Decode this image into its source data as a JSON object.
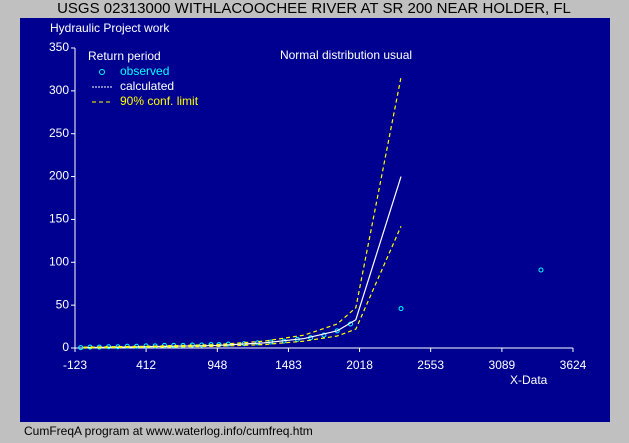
{
  "chart_data": {
    "type": "line",
    "title": "USGS 02313000 WITHLACOOCHEE RIVER AT SR 200 NEAR HOLDER, FL",
    "subtitle": "Hydraulic Project work",
    "annotation": "Normal distribution usual",
    "legend_title": "Return period",
    "x_label": "X-Data",
    "footer": "CumFreqA program at www.waterlog.info/cumfreq.htm",
    "xlim": [
      -123,
      3624
    ],
    "xticks": [
      -123,
      412,
      948,
      1483,
      2018,
      2553,
      3089,
      3624
    ],
    "ylim": [
      0,
      350
    ],
    "yticks": [
      0,
      50,
      100,
      150,
      200,
      250,
      300,
      350
    ],
    "series": [
      {
        "name": "observed",
        "color": "#00ffff",
        "style": "markers",
        "x": [
          -80,
          -10,
          60,
          130,
          200,
          270,
          340,
          412,
          480,
          550,
          620,
          690,
          760,
          830,
          900,
          960,
          1030,
          1150,
          1250,
          1350,
          1450,
          1550,
          1650,
          1750,
          1850,
          1950,
          2330,
          3383
        ],
        "values": [
          0.5,
          1,
          1,
          1.5,
          1.5,
          2,
          2,
          2.5,
          2.5,
          3,
          3,
          3,
          3.5,
          3.5,
          4,
          4,
          4.5,
          5,
          6,
          7,
          8,
          10,
          12,
          15,
          20,
          28,
          46,
          91
        ]
      },
      {
        "name": "calculated",
        "color": "#ffffff",
        "style": "solid",
        "x": [
          -60,
          400,
          948,
          1300,
          1600,
          1850,
          1990,
          2330
        ],
        "values": [
          0.5,
          1.5,
          3,
          6,
          11,
          20,
          33,
          200
        ]
      },
      {
        "name": "90% conf. limit",
        "color": "#ffff00",
        "style": "dashed",
        "x": [
          -60,
          400,
          948,
          1300,
          1600,
          1850,
          1990,
          2330
        ],
        "values": [
          1,
          2,
          4,
          8,
          15,
          28,
          47,
          316
        ],
        "lower": [
          0,
          1,
          2,
          4,
          8,
          14,
          22,
          142
        ]
      }
    ]
  }
}
